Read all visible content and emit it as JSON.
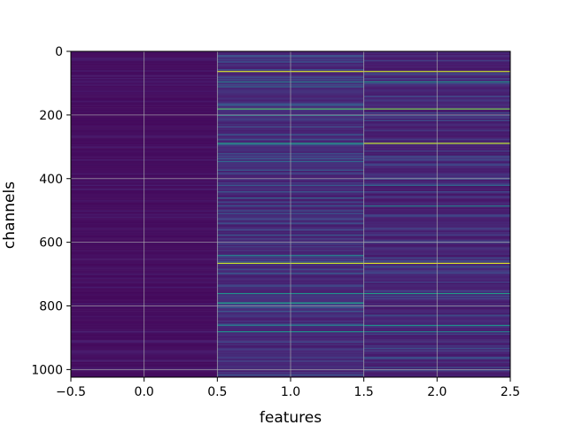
{
  "chart_data": {
    "type": "heatmap",
    "title": "",
    "xlabel": "features",
    "ylabel": "channels",
    "xlim": [
      -0.5,
      2.5
    ],
    "ylim": [
      1024,
      0
    ],
    "y_inverted": true,
    "grid": true,
    "colormap": "viridis",
    "x_ticks": [
      {
        "value": -0.5,
        "label": "−0.5"
      },
      {
        "value": 0.0,
        "label": "0.0"
      },
      {
        "value": 0.5,
        "label": "0.5"
      },
      {
        "value": 1.0,
        "label": "1.0"
      },
      {
        "value": 1.5,
        "label": "1.5"
      },
      {
        "value": 2.0,
        "label": "2.0"
      },
      {
        "value": 2.5,
        "label": "2.5"
      }
    ],
    "y_ticks": [
      {
        "value": 0,
        "label": "0"
      },
      {
        "value": 200,
        "label": "200"
      },
      {
        "value": 400,
        "label": "400"
      },
      {
        "value": 600,
        "label": "600"
      },
      {
        "value": 800,
        "label": "800"
      },
      {
        "value": 1000,
        "label": "1000"
      }
    ],
    "columns": [
      {
        "feature": 0,
        "base_level": 0.03,
        "jitter": 0.08,
        "highlights": []
      },
      {
        "feature": 1,
        "base_level": 0.1,
        "jitter": 0.25,
        "highlights": [
          {
            "channel": 62,
            "level": 0.95
          },
          {
            "channel": 95,
            "level": 0.45
          },
          {
            "channel": 110,
            "level": 0.4
          },
          {
            "channel": 180,
            "level": 0.72
          },
          {
            "channel": 200,
            "level": 0.45
          },
          {
            "channel": 288,
            "level": 0.55
          },
          {
            "channel": 345,
            "level": 0.4
          },
          {
            "channel": 420,
            "level": 0.35
          },
          {
            "channel": 460,
            "level": 0.4
          },
          {
            "channel": 640,
            "level": 0.45
          },
          {
            "channel": 665,
            "level": 0.92
          },
          {
            "channel": 760,
            "level": 0.5
          },
          {
            "channel": 790,
            "level": 0.55
          },
          {
            "channel": 860,
            "level": 0.45
          },
          {
            "channel": 880,
            "level": 0.5
          }
        ]
      },
      {
        "feature": 2,
        "base_level": 0.08,
        "jitter": 0.22,
        "highlights": [
          {
            "channel": 62,
            "level": 0.92
          },
          {
            "channel": 95,
            "level": 0.5
          },
          {
            "channel": 180,
            "level": 0.8
          },
          {
            "channel": 288,
            "level": 0.92
          },
          {
            "channel": 420,
            "level": 0.4
          },
          {
            "channel": 485,
            "level": 0.45
          },
          {
            "channel": 665,
            "level": 0.95
          },
          {
            "channel": 760,
            "level": 0.55
          },
          {
            "channel": 860,
            "level": 0.5
          },
          {
            "channel": 880,
            "level": 0.45
          }
        ]
      }
    ]
  }
}
